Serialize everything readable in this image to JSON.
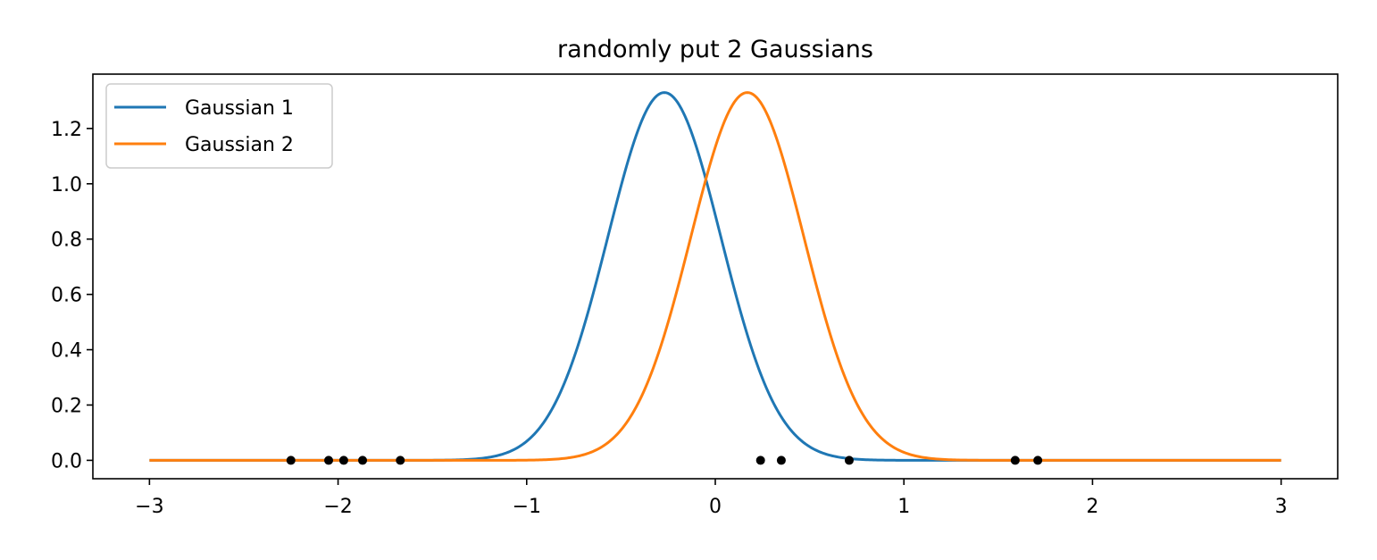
{
  "chart_data": {
    "type": "line",
    "title": "randomly put 2 Gaussians",
    "xlabel": "",
    "ylabel": "",
    "xlim": [
      -3.3,
      3.3
    ],
    "ylim": [
      -0.0665,
      1.3965
    ],
    "x_ticks": [
      -3,
      -2,
      -1,
      0,
      1,
      2,
      3
    ],
    "x_tick_labels": [
      "−3",
      "−2",
      "−1",
      "0",
      "1",
      "2",
      "3"
    ],
    "y_ticks": [
      0.0,
      0.2,
      0.4,
      0.6,
      0.8,
      1.0,
      1.2
    ],
    "y_tick_labels": [
      "0.0",
      "0.2",
      "0.4",
      "0.6",
      "0.8",
      "1.0",
      "1.2"
    ],
    "grid": false,
    "legend_position": "top-left",
    "x_range": [
      -3,
      3
    ],
    "series": [
      {
        "name": "Gaussian 1",
        "color": "#1f77b4",
        "mean": -0.27,
        "std": 0.3,
        "peak": 1.33
      },
      {
        "name": "Gaussian 2",
        "color": "#ff7f0e",
        "mean": 0.17,
        "std": 0.3,
        "peak": 1.33
      }
    ],
    "points": {
      "color": "#000000",
      "x": [
        -2.25,
        -2.05,
        -1.97,
        -1.87,
        -1.67,
        0.24,
        0.35,
        0.71,
        1.59,
        1.71
      ],
      "y": [
        0,
        0,
        0,
        0,
        0,
        0,
        0,
        0,
        0,
        0
      ]
    }
  }
}
